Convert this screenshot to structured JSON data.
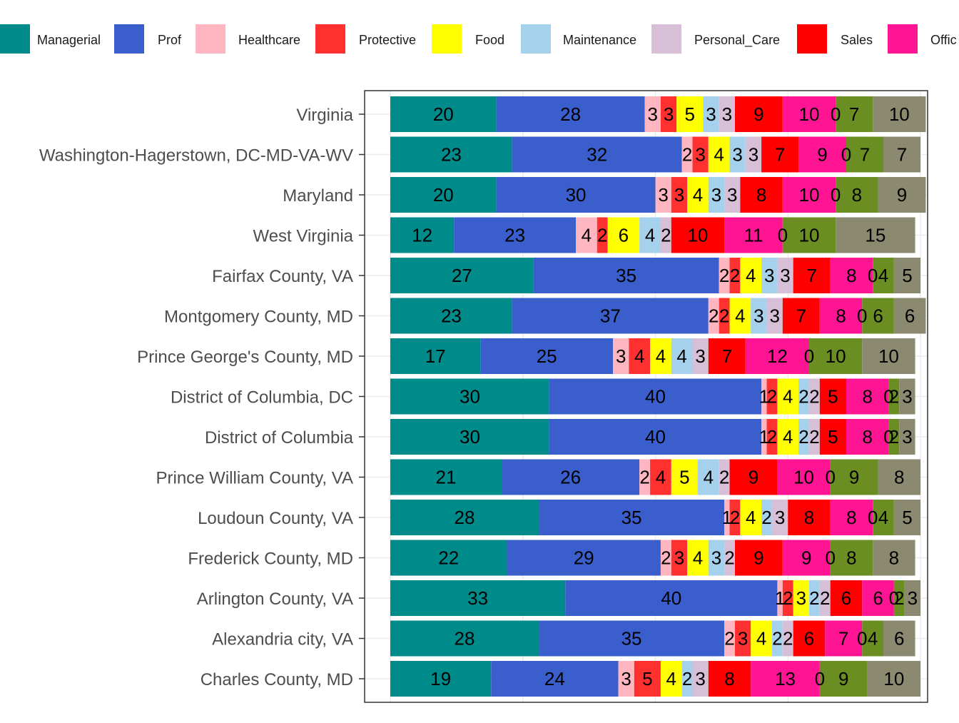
{
  "chart_data": {
    "type": "bar",
    "orientation": "horizontal",
    "stacked": true,
    "legend_position": "top",
    "grid": true,
    "xlim": [
      0,
      100
    ],
    "categories": [
      "Virginia",
      "Washington-Hagerstown, DC-MD-VA-WV",
      "Maryland",
      "West Virginia",
      "Fairfax County, VA",
      "Montgomery County, MD",
      "Prince George's County, MD",
      "District of Columbia, DC",
      "District of Columbia",
      "Prince William County, VA",
      "Loudoun County, VA",
      "Frederick County, MD",
      "Arlington County, VA",
      "Alexandria city, VA",
      "Charles County, MD"
    ],
    "series": [
      {
        "name": "Managerial",
        "color": "#008B8B",
        "values": [
          20,
          23,
          20,
          12,
          27,
          23,
          17,
          30,
          30,
          21,
          28,
          22,
          33,
          28,
          19
        ]
      },
      {
        "name": "Prof",
        "color": "#3A5FCD",
        "values": [
          28,
          32,
          30,
          23,
          35,
          37,
          25,
          40,
          40,
          26,
          35,
          29,
          40,
          35,
          24
        ]
      },
      {
        "name": "Healthcare",
        "color": "#FFB6C1",
        "values": [
          3,
          2,
          3,
          4,
          2,
          2,
          3,
          1,
          1,
          2,
          1,
          2,
          1,
          2,
          3
        ]
      },
      {
        "name": "Protective",
        "color": "#FF3030",
        "values": [
          3,
          3,
          3,
          2,
          2,
          2,
          4,
          2,
          2,
          4,
          2,
          3,
          2,
          3,
          5
        ]
      },
      {
        "name": "Food",
        "color": "#FFFF00",
        "values": [
          5,
          4,
          4,
          6,
          4,
          4,
          4,
          4,
          4,
          5,
          4,
          4,
          3,
          4,
          4
        ]
      },
      {
        "name": "Maintenance",
        "color": "#A6D1EC",
        "values": [
          3,
          3,
          3,
          4,
          3,
          3,
          4,
          2,
          2,
          4,
          2,
          3,
          2,
          2,
          2
        ]
      },
      {
        "name": "Personal_Care",
        "color": "#D8BFD8",
        "values": [
          3,
          3,
          3,
          2,
          3,
          3,
          3,
          2,
          2,
          2,
          3,
          2,
          2,
          2,
          3
        ]
      },
      {
        "name": "Sales",
        "color": "#FF0000",
        "values": [
          9,
          7,
          8,
          10,
          7,
          7,
          7,
          5,
          5,
          9,
          8,
          9,
          6,
          6,
          8
        ]
      },
      {
        "name": "Office",
        "color": "#FF1493",
        "values": [
          10,
          9,
          10,
          11,
          8,
          8,
          12,
          8,
          8,
          10,
          8,
          9,
          6,
          7,
          13
        ]
      },
      {
        "name": "",
        "color": "#3CB371",
        "values": [
          0,
          0,
          0,
          0,
          0,
          0,
          0,
          0,
          0,
          0,
          0,
          0,
          0,
          0,
          0
        ]
      },
      {
        "name": "",
        "color": "#6B8E23",
        "values": [
          7,
          7,
          8,
          10,
          4,
          6,
          10,
          2,
          2,
          9,
          4,
          8,
          2,
          4,
          9
        ]
      },
      {
        "name": "",
        "color": "#8B8970",
        "values": [
          10,
          7,
          9,
          15,
          5,
          6,
          10,
          3,
          3,
          8,
          5,
          8,
          3,
          6,
          10
        ]
      }
    ],
    "legend_labels": [
      "Managerial",
      "Prof",
      "Healthcare",
      "Protective",
      "Food",
      "Maintenance",
      "Personal_Care",
      "Sales",
      "Offic"
    ]
  }
}
